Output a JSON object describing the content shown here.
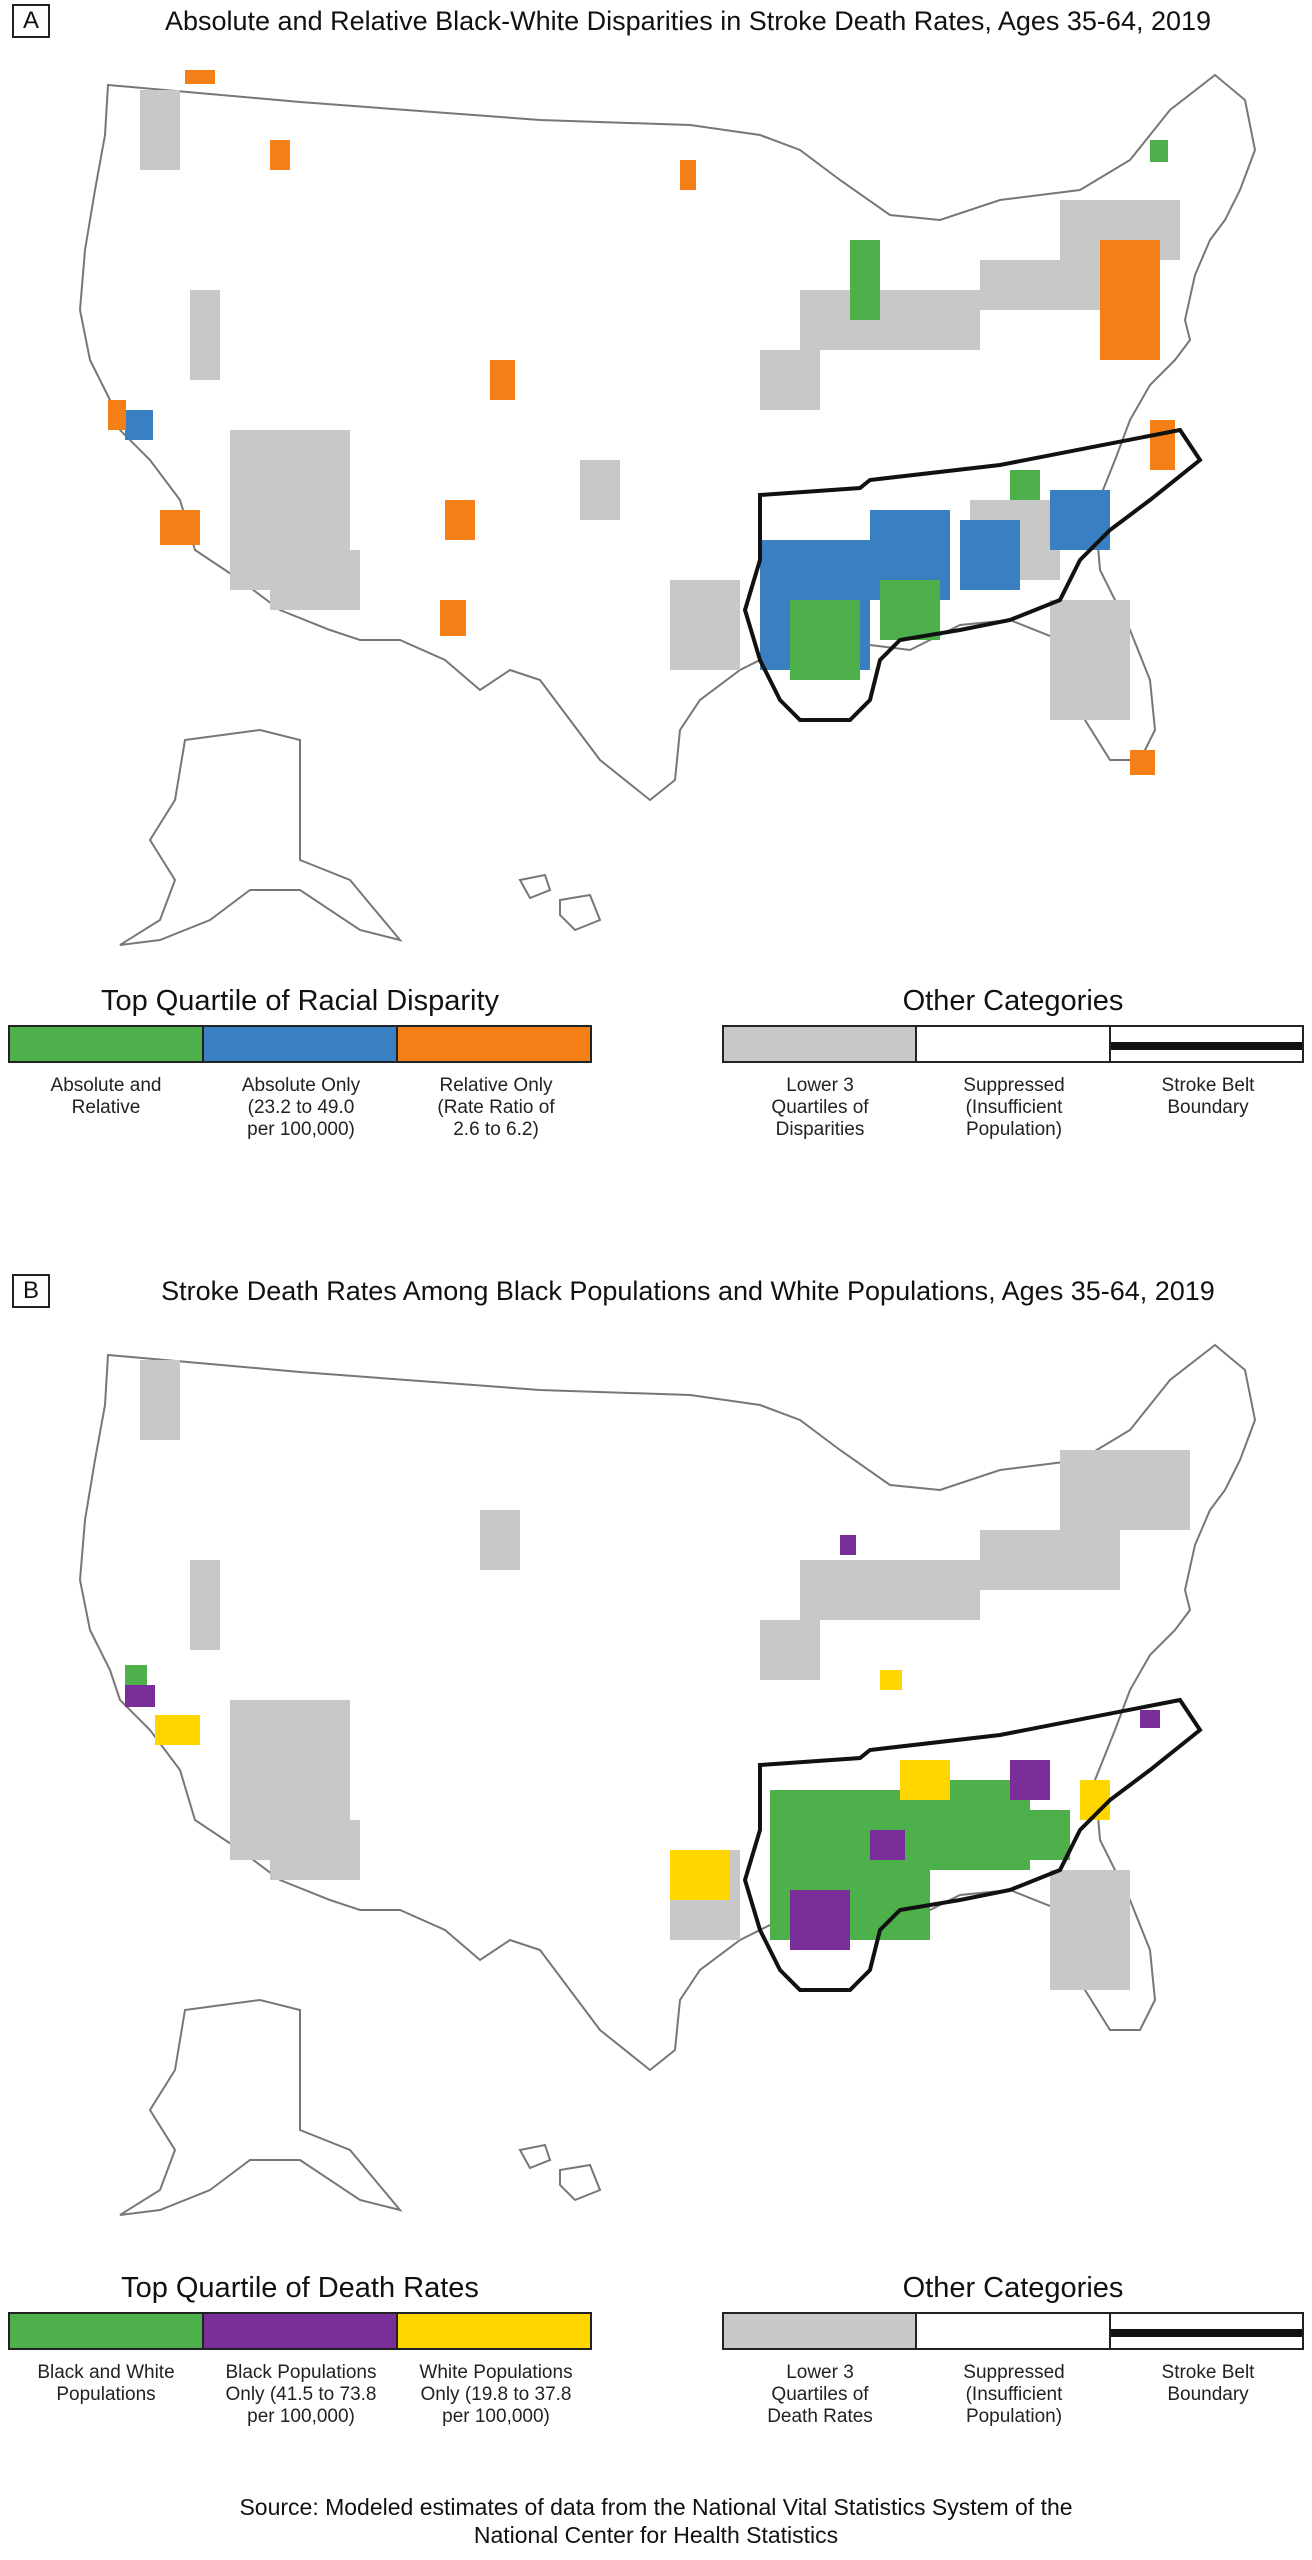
{
  "colors": {
    "green": "#4db04a",
    "blue": "#3a7fc1",
    "orange": "#f57f17",
    "purple": "#7a2e9a",
    "yellow": "#ffd600",
    "gray": "#c8c8c8",
    "white": "#ffffff",
    "boundary": "#111111"
  },
  "panel_a": {
    "letter": "A",
    "title": "Absolute and Relative Black-White Disparities in Stroke Death Rates, Ages 35-64, 2019",
    "legend_left_title": "Top Quartile of Racial Disparity",
    "legend_left": [
      {
        "label": "Absolute and\nRelative",
        "color": "#4db04a"
      },
      {
        "label": "Absolute Only\n(23.2 to 49.0\nper 100,000)",
        "color": "#3a7fc1"
      },
      {
        "label": "Relative Only\n(Rate Ratio of\n2.6 to 6.2)",
        "color": "#f57f17"
      }
    ],
    "legend_right_title": "Other Categories",
    "legend_right": [
      {
        "label": "Lower 3\nQuartiles of\nDisparities",
        "color": "#c8c8c8"
      },
      {
        "label": "Suppressed\n(Insufficient\nPopulation)",
        "color": "#ffffff"
      },
      {
        "label": "Stroke Belt\nBoundary",
        "color": "boundary"
      }
    ]
  },
  "panel_b": {
    "letter": "B",
    "title": "Stroke Death Rates Among Black Populations and White Populations, Ages 35-64, 2019",
    "legend_left_title": "Top Quartile of Death Rates",
    "legend_left": [
      {
        "label": "Black and White\nPopulations",
        "color": "#4db04a"
      },
      {
        "label": "Black Populations\nOnly (41.5 to 73.8\nper 100,000)",
        "color": "#7a2e9a"
      },
      {
        "label": "White Populations\nOnly (19.8 to 37.8\nper 100,000)",
        "color": "#ffd600"
      }
    ],
    "legend_right_title": "Other Categories",
    "legend_right": [
      {
        "label": "Lower 3\nQuartiles of\nDeath Rates",
        "color": "#c8c8c8"
      },
      {
        "label": "Suppressed\n(Insufficient\nPopulation)",
        "color": "#ffffff"
      },
      {
        "label": "Stroke Belt\nBoundary",
        "color": "boundary"
      }
    ]
  },
  "source": "Source: Modeled estimates of data from the National Vital Statistics System of the\nNational Center for Health Statistics"
}
